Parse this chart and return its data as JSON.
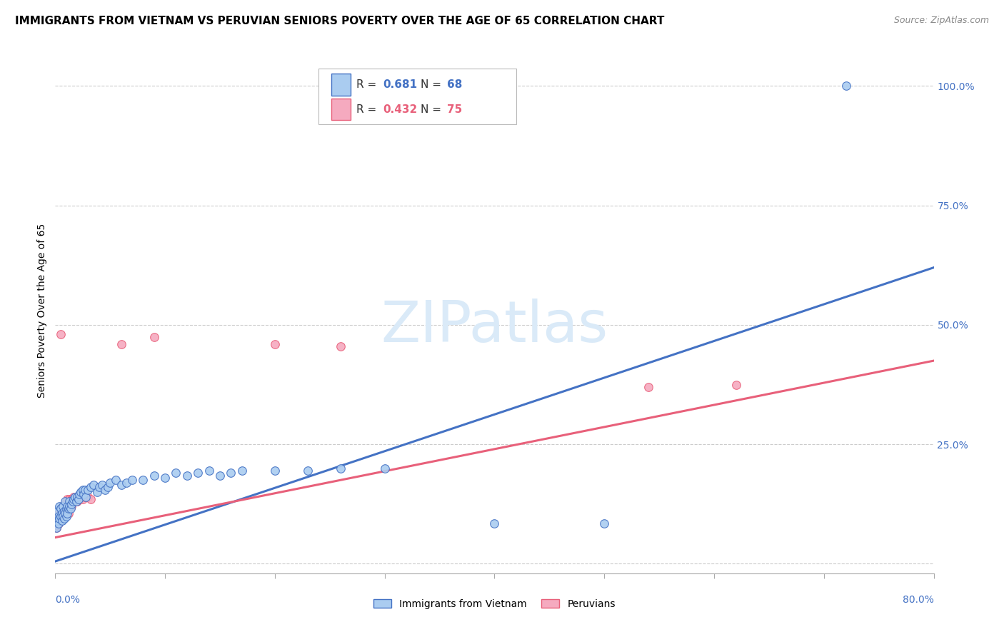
{
  "title": "IMMIGRANTS FROM VIETNAM VS PERUVIAN SENIORS POVERTY OVER THE AGE OF 65 CORRELATION CHART",
  "source": "Source: ZipAtlas.com",
  "ylabel": "Seniors Poverty Over the Age of 65",
  "xmin": 0.0,
  "xmax": 0.8,
  "ymin": -0.02,
  "ymax": 1.08,
  "ytick_positions": [
    0.0,
    0.25,
    0.5,
    0.75,
    1.0
  ],
  "ytick_labels": [
    "",
    "25.0%",
    "50.0%",
    "75.0%",
    "100.0%"
  ],
  "xtick_positions": [
    0.0,
    0.1,
    0.2,
    0.3,
    0.4,
    0.5,
    0.6,
    0.7,
    0.8
  ],
  "vietnam_line": {
    "x0": 0.0,
    "y0": 0.005,
    "x1": 0.8,
    "y1": 0.62,
    "color": "#4472c4"
  },
  "peru_line": {
    "x0": 0.0,
    "y0": 0.055,
    "x1": 0.8,
    "y1": 0.425,
    "color": "#e8607a"
  },
  "vietnam_dots": [
    [
      0.001,
      0.075
    ],
    [
      0.002,
      0.09
    ],
    [
      0.002,
      0.11
    ],
    [
      0.003,
      0.085
    ],
    [
      0.003,
      0.1
    ],
    [
      0.004,
      0.095
    ],
    [
      0.004,
      0.12
    ],
    [
      0.005,
      0.1
    ],
    [
      0.005,
      0.115
    ],
    [
      0.006,
      0.09
    ],
    [
      0.006,
      0.105
    ],
    [
      0.007,
      0.1
    ],
    [
      0.007,
      0.12
    ],
    [
      0.008,
      0.095
    ],
    [
      0.008,
      0.11
    ],
    [
      0.009,
      0.105
    ],
    [
      0.009,
      0.13
    ],
    [
      0.01,
      0.115
    ],
    [
      0.01,
      0.1
    ],
    [
      0.011,
      0.12
    ],
    [
      0.011,
      0.105
    ],
    [
      0.012,
      0.115
    ],
    [
      0.013,
      0.13
    ],
    [
      0.013,
      0.12
    ],
    [
      0.014,
      0.115
    ],
    [
      0.015,
      0.125
    ],
    [
      0.016,
      0.13
    ],
    [
      0.017,
      0.135
    ],
    [
      0.018,
      0.14
    ],
    [
      0.019,
      0.13
    ],
    [
      0.02,
      0.14
    ],
    [
      0.021,
      0.135
    ],
    [
      0.022,
      0.145
    ],
    [
      0.023,
      0.15
    ],
    [
      0.025,
      0.155
    ],
    [
      0.026,
      0.145
    ],
    [
      0.027,
      0.155
    ],
    [
      0.028,
      0.14
    ],
    [
      0.03,
      0.155
    ],
    [
      0.032,
      0.16
    ],
    [
      0.035,
      0.165
    ],
    [
      0.038,
      0.15
    ],
    [
      0.04,
      0.16
    ],
    [
      0.043,
      0.165
    ],
    [
      0.045,
      0.155
    ],
    [
      0.048,
      0.16
    ],
    [
      0.05,
      0.17
    ],
    [
      0.055,
      0.175
    ],
    [
      0.06,
      0.165
    ],
    [
      0.065,
      0.17
    ],
    [
      0.07,
      0.175
    ],
    [
      0.08,
      0.175
    ],
    [
      0.09,
      0.185
    ],
    [
      0.1,
      0.18
    ],
    [
      0.11,
      0.19
    ],
    [
      0.12,
      0.185
    ],
    [
      0.13,
      0.19
    ],
    [
      0.14,
      0.195
    ],
    [
      0.15,
      0.185
    ],
    [
      0.16,
      0.19
    ],
    [
      0.17,
      0.195
    ],
    [
      0.2,
      0.195
    ],
    [
      0.23,
      0.195
    ],
    [
      0.26,
      0.2
    ],
    [
      0.3,
      0.2
    ],
    [
      0.4,
      0.085
    ],
    [
      0.5,
      0.085
    ],
    [
      0.72,
      1.0
    ]
  ],
  "peru_dots": [
    [
      0.001,
      0.075
    ],
    [
      0.001,
      0.085
    ],
    [
      0.002,
      0.08
    ],
    [
      0.002,
      0.09
    ],
    [
      0.002,
      0.1
    ],
    [
      0.003,
      0.085
    ],
    [
      0.003,
      0.095
    ],
    [
      0.003,
      0.105
    ],
    [
      0.004,
      0.09
    ],
    [
      0.004,
      0.1
    ],
    [
      0.005,
      0.095
    ],
    [
      0.005,
      0.105
    ],
    [
      0.005,
      0.115
    ],
    [
      0.006,
      0.1
    ],
    [
      0.006,
      0.11
    ],
    [
      0.006,
      0.12
    ],
    [
      0.007,
      0.105
    ],
    [
      0.007,
      0.115
    ],
    [
      0.008,
      0.11
    ],
    [
      0.008,
      0.12
    ],
    [
      0.009,
      0.115
    ],
    [
      0.009,
      0.125
    ],
    [
      0.01,
      0.12
    ],
    [
      0.01,
      0.13
    ],
    [
      0.011,
      0.125
    ],
    [
      0.011,
      0.135
    ],
    [
      0.012,
      0.13
    ],
    [
      0.012,
      0.105
    ],
    [
      0.013,
      0.135
    ],
    [
      0.013,
      0.115
    ],
    [
      0.014,
      0.13
    ],
    [
      0.015,
      0.135
    ],
    [
      0.015,
      0.12
    ],
    [
      0.016,
      0.135
    ],
    [
      0.017,
      0.14
    ],
    [
      0.018,
      0.135
    ],
    [
      0.019,
      0.14
    ],
    [
      0.02,
      0.13
    ],
    [
      0.021,
      0.14
    ],
    [
      0.022,
      0.135
    ],
    [
      0.023,
      0.14
    ],
    [
      0.025,
      0.135
    ],
    [
      0.027,
      0.14
    ],
    [
      0.03,
      0.14
    ],
    [
      0.032,
      0.135
    ],
    [
      0.005,
      0.48
    ],
    [
      0.06,
      0.46
    ],
    [
      0.09,
      0.475
    ],
    [
      0.2,
      0.46
    ],
    [
      0.26,
      0.455
    ],
    [
      0.54,
      0.37
    ],
    [
      0.62,
      0.375
    ]
  ],
  "dot_size": 70,
  "vietnam_dot_color": "#aaccf0",
  "peru_dot_color": "#f5aabf",
  "vietnam_dot_edge": "#4472c4",
  "peru_dot_edge": "#e8607a",
  "background_color": "#ffffff",
  "grid_color": "#cccccc",
  "tick_color": "#4472c4",
  "axis_color": "#aaaaaa",
  "title_fontsize": 11,
  "source_fontsize": 9,
  "ylabel_fontsize": 10,
  "tick_fontsize": 10,
  "legend_fontsize": 11,
  "watermark": "ZIPatlas",
  "watermark_color": "#daeaf8"
}
